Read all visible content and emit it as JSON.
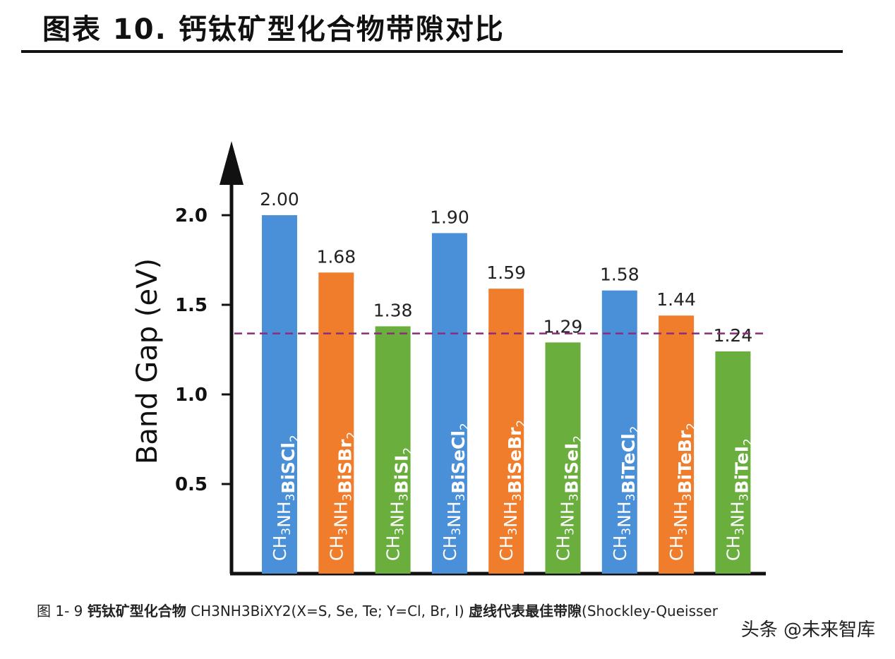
{
  "header": {
    "title": "图表 10. 钙钛矿型化合物带隙对比"
  },
  "caption": {
    "figure_no": "图 1- 9",
    "part1": "钙钛矿型化合物",
    "part2": "CH3NH3BiXY2(X=S, Se, Te; Y=Cl, Br, I)",
    "part3": "虚线代表最佳带隙",
    "part4": "(Shockley-Queisser"
  },
  "watermark": "头条 @未来智库",
  "chart_data": {
    "type": "bar",
    "ylabel": "Band Gap (eV)",
    "ylim": [
      0.0,
      2.25
    ],
    "yticks": [
      0.5,
      1.0,
      1.5,
      2.0
    ],
    "ytick_labels": [
      "0.5",
      "1.0",
      "1.5",
      "2.0"
    ],
    "grid": false,
    "legend": "none",
    "reference_line": {
      "value": 1.34,
      "style": "dashed",
      "color": "#8b2c7c"
    },
    "categories": [
      "CH3NH3BiSCl2",
      "CH3NH3BiSBr2",
      "CH3NH3BiSI2",
      "CH3NH3BiSeCl2",
      "CH3NH3BiSeBr2",
      "CH3NH3BiSeI2",
      "CH3NH3BiTeCl2",
      "CH3NH3BiTeBr2",
      "CH3NH3BiTeI2"
    ],
    "bar_label_parts": [
      [
        "BiSCl",
        "2"
      ],
      [
        "BiSBr",
        "2"
      ],
      [
        "BiSI",
        "2"
      ],
      [
        "BiSeCl",
        "2"
      ],
      [
        "BiSeBr",
        "2"
      ],
      [
        "BiSeI",
        "2"
      ],
      [
        "BiTeCl",
        "2"
      ],
      [
        "BiTeBr",
        "2"
      ],
      [
        "BiTeI",
        "2"
      ]
    ],
    "values": [
      2.0,
      1.68,
      1.38,
      1.9,
      1.59,
      1.29,
      1.58,
      1.44,
      1.24
    ],
    "value_labels": [
      "2.00",
      "1.68",
      "1.38",
      "1.90",
      "1.59",
      "1.29",
      "1.58",
      "1.44",
      "1.24"
    ],
    "colors": [
      "#4a90d9",
      "#ef7d2b",
      "#6aaf3e",
      "#4a90d9",
      "#ef7d2b",
      "#6aaf3e",
      "#4a90d9",
      "#ef7d2b",
      "#6aaf3e"
    ]
  }
}
